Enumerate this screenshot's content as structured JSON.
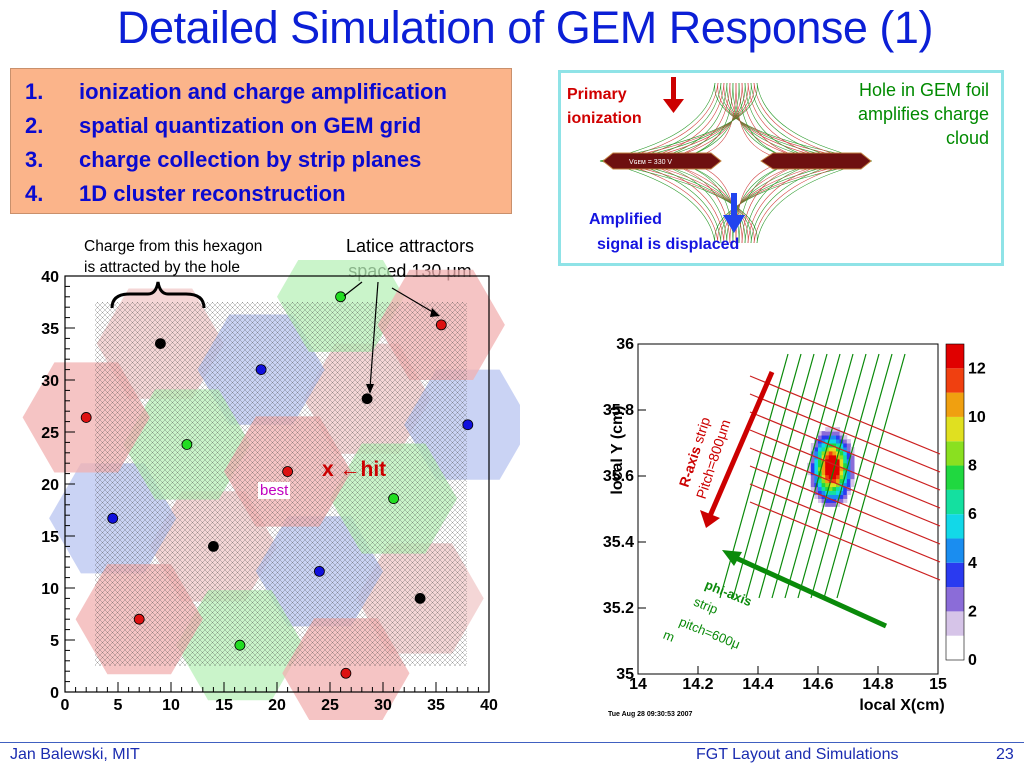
{
  "title": "Detailed Simulation of GEM Response (1)",
  "steps": [
    {
      "num": "1.",
      "text": "ionization and charge amplification"
    },
    {
      "num": "2.",
      "text": "spatial quantization on GEM grid"
    },
    {
      "num": "3.",
      "text": "charge collection by strip planes"
    },
    {
      "num": "4.",
      "text": "1D cluster reconstruction"
    }
  ],
  "gem_diagram": {
    "primary_line1": "Primary",
    "primary_line2": "ionization",
    "hole_line1": "Hole in GEM foil",
    "hole_line2": "amplifies charge",
    "hole_line3": "cloud",
    "amplified_line1": "Amplified",
    "amplified_line2": "signal is displaced",
    "foil_voltage": "Vɢᴇᴍ = 330 V"
  },
  "hexagon_note_line1": "Charge from this hexagon",
  "hexagon_note_line2": "is attracted by the hole",
  "lattice_note_line1": "Latice attractors",
  "lattice_note_line2": "spaced 130 μm",
  "hit_label": "x ←hit",
  "best_label": "best",
  "colors": {
    "title": "#0b1fd6",
    "steps_bg": "#fbb48a",
    "steps_text": "#0a0ad0",
    "gem_border": "#8fe3e7"
  },
  "chart_data": [
    {
      "type": "scatter",
      "xlim": [
        0,
        40
      ],
      "ylim": [
        0,
        40
      ],
      "x_ticks": [
        "0",
        "5",
        "10",
        "15",
        "20",
        "25",
        "30",
        "35",
        "40"
      ],
      "y_ticks": [
        "0",
        "5",
        "10",
        "15",
        "20",
        "25",
        "30",
        "35",
        "40"
      ],
      "series": [
        {
          "color": "black",
          "points": [
            [
              9,
              33.5
            ],
            [
              28.5,
              28.2
            ],
            [
              14,
              14
            ],
            [
              33.5,
              9
            ]
          ]
        },
        {
          "color": "blue",
          "points": [
            [
              18.5,
              31
            ],
            [
              38,
              25.7
            ],
            [
              4.5,
              16.7
            ],
            [
              24,
              11.6
            ]
          ]
        },
        {
          "color": "green",
          "points": [
            [
              26,
              38
            ],
            [
              11.5,
              23.8
            ],
            [
              31,
              18.6
            ],
            [
              16.5,
              4.5
            ]
          ]
        },
        {
          "color": "red",
          "points": [
            [
              35.5,
              35.3
            ],
            [
              2,
              26.4
            ],
            [
              21,
              21.2
            ],
            [
              7,
              7
            ],
            [
              26.5,
              1.8
            ]
          ]
        }
      ]
    },
    {
      "type": "heatmap",
      "xlim": [
        14,
        15
      ],
      "ylim": [
        35,
        36
      ],
      "xlabel": "local X(cm)",
      "ylabel": "local Y (cm)",
      "x_ticks": [
        "14",
        "14.2",
        "14.4",
        "14.6",
        "14.8",
        "15"
      ],
      "y_ticks": [
        "35",
        "35.2",
        "35.4",
        "35.6",
        "35.8",
        "36"
      ],
      "z_ticks": [
        "0",
        "2",
        "4",
        "6",
        "8",
        "10",
        "12"
      ],
      "zlim": [
        0,
        13
      ],
      "timestamp": "Tue Aug 28 09:30:53 2007",
      "r_axis_label": "R-axis",
      "r_axis_strip": "strip",
      "r_axis_pitch": "Pitch=800μm",
      "phi_axis_label": "phi-axis",
      "phi_axis_strip": "strip",
      "phi_axis_pitch_line1": "pitch=600μ",
      "phi_axis_pitch_line2": "m"
    }
  ],
  "footer": {
    "author": "Jan Balewski, MIT",
    "talk": "FGT Layout and Simulations",
    "page": "23"
  }
}
